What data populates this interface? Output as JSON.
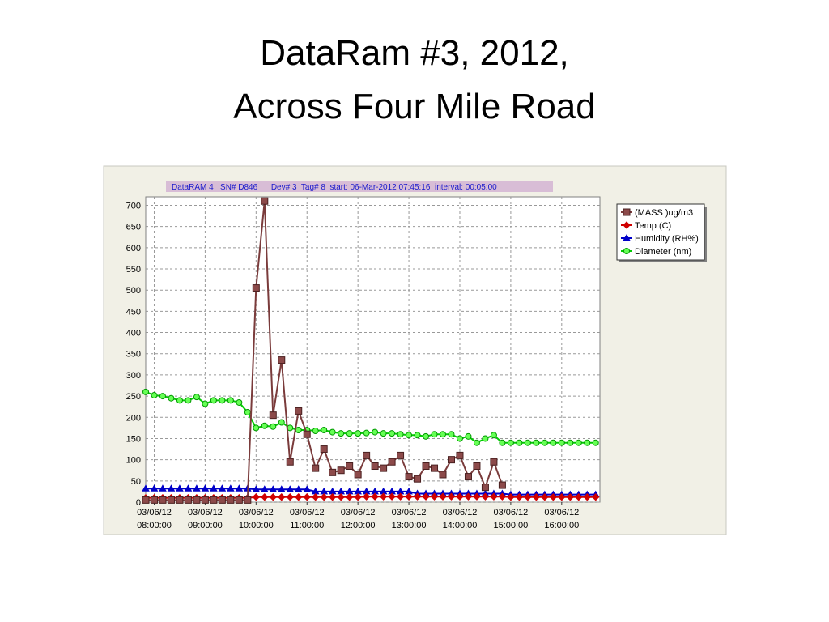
{
  "slide": {
    "title_lines": [
      "DataRam #3, 2012,",
      "Across Four Mile Road"
    ]
  },
  "chart_data": {
    "type": "line",
    "header": "DataRAM 4   SN# D846      Dev# 3  Tag# 8  start: 06-Mar-2012 07:45:16  interval: 00:05:00",
    "x": [
      "2012-03-06 07:50",
      "2012-03-06 08:00",
      "2012-03-06 08:10",
      "2012-03-06 08:20",
      "2012-03-06 08:30",
      "2012-03-06 08:40",
      "2012-03-06 08:50",
      "2012-03-06 09:00",
      "2012-03-06 09:10",
      "2012-03-06 09:20",
      "2012-03-06 09:30",
      "2012-03-06 09:40",
      "2012-03-06 09:50",
      "2012-03-06 10:00",
      "2012-03-06 10:10",
      "2012-03-06 10:20",
      "2012-03-06 10:30",
      "2012-03-06 10:40",
      "2012-03-06 10:50",
      "2012-03-06 11:00",
      "2012-03-06 11:10",
      "2012-03-06 11:20",
      "2012-03-06 11:30",
      "2012-03-06 11:40",
      "2012-03-06 11:50",
      "2012-03-06 12:00",
      "2012-03-06 12:10",
      "2012-03-06 12:20",
      "2012-03-06 12:30",
      "2012-03-06 12:40",
      "2012-03-06 12:50",
      "2012-03-06 13:00",
      "2012-03-06 13:10",
      "2012-03-06 13:20",
      "2012-03-06 13:30",
      "2012-03-06 13:40",
      "2012-03-06 13:50",
      "2012-03-06 14:00",
      "2012-03-06 14:10",
      "2012-03-06 14:20",
      "2012-03-06 14:30",
      "2012-03-06 14:40",
      "2012-03-06 14:50",
      "2012-03-06 15:00",
      "2012-03-06 15:10",
      "2012-03-06 15:20",
      "2012-03-06 15:30",
      "2012-03-06 15:40",
      "2012-03-06 15:50",
      "2012-03-06 16:00",
      "2012-03-06 16:10",
      "2012-03-06 16:20",
      "2012-03-06 16:30",
      "2012-03-06 16:40"
    ],
    "series": [
      {
        "name": "(MASS )ug/m3",
        "color": "#7a3b3b",
        "marker": "square",
        "values": [
          5,
          5,
          5,
          5,
          5,
          5,
          5,
          5,
          5,
          5,
          5,
          5,
          5,
          505,
          710,
          205,
          335,
          95,
          215,
          160,
          80,
          125,
          70,
          75,
          85,
          65,
          110,
          85,
          80,
          95,
          110,
          60,
          55,
          85,
          80,
          65,
          100,
          110,
          60,
          85,
          35,
          95,
          40,
          null,
          null,
          null,
          null,
          null,
          null,
          null,
          null,
          null,
          null,
          null
        ]
      },
      {
        "name": "Temp (C)",
        "color": "#d00000",
        "marker": "diamond",
        "values": [
          10,
          10,
          10,
          10,
          10,
          10,
          10,
          10,
          10,
          10,
          10,
          10,
          10,
          12,
          12,
          12,
          12,
          12,
          12,
          12,
          12,
          12,
          12,
          12,
          12,
          12,
          13,
          13,
          13,
          13,
          13,
          13,
          13,
          13,
          13,
          13,
          13,
          13,
          13,
          13,
          13,
          13,
          13,
          12,
          12,
          12,
          12,
          12,
          12,
          12,
          12,
          12,
          12,
          12
        ]
      },
      {
        "name": "Humidity (RH%)",
        "color": "#0000c8",
        "marker": "triangle",
        "values": [
          32,
          32,
          32,
          32,
          32,
          32,
          32,
          32,
          32,
          32,
          32,
          32,
          32,
          30,
          30,
          30,
          30,
          30,
          30,
          30,
          25,
          25,
          25,
          25,
          25,
          25,
          25,
          25,
          25,
          25,
          25,
          25,
          20,
          20,
          20,
          20,
          20,
          20,
          20,
          20,
          20,
          20,
          20,
          18,
          18,
          18,
          18,
          18,
          18,
          18,
          18,
          18,
          18,
          18
        ]
      },
      {
        "name": "Diameter (nm)",
        "color": "#00cc00",
        "marker": "circle",
        "values": [
          260,
          252,
          250,
          245,
          240,
          240,
          248,
          232,
          240,
          240,
          240,
          235,
          212,
          175,
          180,
          178,
          188,
          175,
          170,
          170,
          168,
          170,
          165,
          162,
          162,
          162,
          163,
          165,
          162,
          162,
          160,
          158,
          158,
          155,
          160,
          160,
          160,
          150,
          155,
          140,
          150,
          158,
          140,
          140,
          140,
          140,
          140,
          140,
          140,
          140,
          140,
          140,
          140,
          140
        ]
      }
    ],
    "xlim": [
      "2012-03-06 07:50",
      "2012-03-06 16:45"
    ],
    "xticks": [
      {
        "value": "2012-03-06 08:00",
        "label": [
          "03/06/12",
          "08:00:00"
        ]
      },
      {
        "value": "2012-03-06 09:00",
        "label": [
          "03/06/12",
          "09:00:00"
        ]
      },
      {
        "value": "2012-03-06 10:00",
        "label": [
          "03/06/12",
          "10:00:00"
        ]
      },
      {
        "value": "2012-03-06 11:00",
        "label": [
          "03/06/12",
          "11:00:00"
        ]
      },
      {
        "value": "2012-03-06 12:00",
        "label": [
          "03/06/12",
          "12:00:00"
        ]
      },
      {
        "value": "2012-03-06 13:00",
        "label": [
          "03/06/12",
          "13:00:00"
        ]
      },
      {
        "value": "2012-03-06 14:00",
        "label": [
          "03/06/12",
          "14:00:00"
        ]
      },
      {
        "value": "2012-03-06 15:00",
        "label": [
          "03/06/12",
          "15:00:00"
        ]
      },
      {
        "value": "2012-03-06 16:00",
        "label": [
          "03/06/12",
          "16:00:00"
        ]
      }
    ],
    "ylim": [
      0,
      720
    ],
    "yticks": [
      0,
      50,
      100,
      150,
      200,
      250,
      300,
      350,
      400,
      450,
      500,
      550,
      600,
      650,
      700
    ],
    "grid": true,
    "legend": "upper-right"
  }
}
